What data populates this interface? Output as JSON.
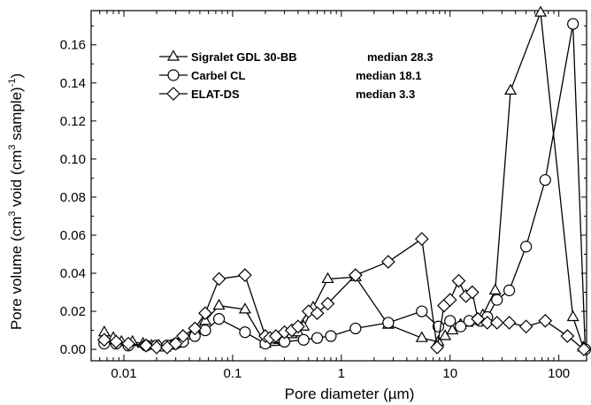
{
  "chart_data": {
    "type": "line",
    "xlabel": "Pore diameter (µm)",
    "ylabel_parts": [
      "Pore volume (cm",
      "3",
      " void (cm",
      "3",
      " sample)",
      "-1",
      ")"
    ],
    "xscale": "log",
    "xlim": [
      0.005,
      180
    ],
    "ylim": [
      -0.006,
      0.178
    ],
    "x_ticks": [
      0.01,
      0.1,
      1,
      10,
      100
    ],
    "x_tick_labels": [
      "0.01",
      "0.1",
      "1",
      "10",
      "100"
    ],
    "y_ticks": [
      0.0,
      0.02,
      0.04,
      0.06,
      0.08,
      0.1,
      0.12,
      0.14,
      0.16
    ],
    "y_tick_labels": [
      "0.00",
      "0.02",
      "0.04",
      "0.06",
      "0.08",
      "0.10",
      "0.12",
      "0.14",
      "0.16"
    ],
    "grid": false,
    "legend_position": "top-left",
    "series": [
      {
        "name": "Sigralet GDL 30-BB",
        "median_label": "median 28.3",
        "marker": "triangle",
        "x": [
          0.0066,
          0.008,
          0.0095,
          0.012,
          0.015,
          0.018,
          0.021,
          0.024,
          0.027,
          0.03,
          0.035,
          0.045,
          0.056,
          0.075,
          0.13,
          0.2,
          0.22,
          0.24,
          0.27,
          0.3,
          0.35,
          0.4,
          0.45,
          0.55,
          0.75,
          1.35,
          2.7,
          5.5,
          7.8,
          9.0,
          10.5,
          12.5,
          14.5,
          17.0,
          20.0,
          26.0,
          36.0,
          68.0,
          135.0,
          168.0
        ],
        "y": [
          0.009,
          0.006,
          0.004,
          0.004,
          0.003,
          0.002,
          0.002,
          0.001,
          0.002,
          0.003,
          0.005,
          0.01,
          0.015,
          0.023,
          0.021,
          0.003,
          0.004,
          0.004,
          0.005,
          0.006,
          0.008,
          0.009,
          0.012,
          0.022,
          0.037,
          0.038,
          0.013,
          0.006,
          0.004,
          0.007,
          0.01,
          0.013,
          0.014,
          0.015,
          0.018,
          0.031,
          0.136,
          0.177,
          0.017,
          0.001
        ]
      },
      {
        "name": "Carbel CL",
        "median_label": "median 18.1",
        "marker": "circle",
        "x": [
          0.0066,
          0.0085,
          0.011,
          0.016,
          0.02,
          0.025,
          0.03,
          0.035,
          0.045,
          0.056,
          0.075,
          0.13,
          0.2,
          0.3,
          0.45,
          0.6,
          0.8,
          1.35,
          2.7,
          5.5,
          7.8,
          10.0,
          12.5,
          15.0,
          19.0,
          22.0,
          27.0,
          35.0,
          50.0,
          75.0,
          135.0,
          175.0
        ],
        "y": [
          0.003,
          0.003,
          0.002,
          0.002,
          0.002,
          0.002,
          0.003,
          0.004,
          0.007,
          0.01,
          0.016,
          0.009,
          0.003,
          0.004,
          0.005,
          0.006,
          0.007,
          0.011,
          0.014,
          0.02,
          0.012,
          0.015,
          0.012,
          0.015,
          0.015,
          0.017,
          0.026,
          0.031,
          0.054,
          0.089,
          0.171,
          0.0
        ]
      },
      {
        "name": "ELAT-DS",
        "median_label": "median 3.3",
        "marker": "diamond",
        "x": [
          0.0066,
          0.0085,
          0.011,
          0.016,
          0.02,
          0.025,
          0.03,
          0.035,
          0.045,
          0.056,
          0.075,
          0.13,
          0.2,
          0.22,
          0.25,
          0.3,
          0.35,
          0.4,
          0.5,
          0.6,
          0.75,
          1.35,
          2.7,
          5.5,
          7.6,
          8.8,
          10.0,
          12.0,
          14.0,
          16.0,
          18.0,
          22.0,
          27.0,
          35.0,
          50.0,
          75.0,
          120.0,
          170.0
        ],
        "y": [
          0.005,
          0.004,
          0.003,
          0.002,
          0.001,
          0.001,
          0.003,
          0.007,
          0.011,
          0.019,
          0.037,
          0.039,
          0.007,
          0.006,
          0.007,
          0.009,
          0.01,
          0.012,
          0.02,
          0.019,
          0.024,
          0.039,
          0.046,
          0.058,
          0.001,
          0.023,
          0.026,
          0.036,
          0.028,
          0.03,
          0.016,
          0.014,
          0.014,
          0.014,
          0.012,
          0.015,
          0.007,
          0.0
        ]
      }
    ]
  }
}
